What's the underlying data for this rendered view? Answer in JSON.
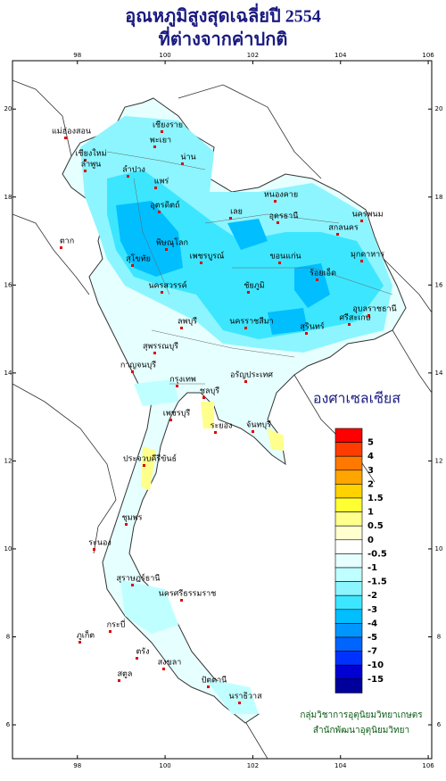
{
  "title": [
    "อุณหภูมิสูงสุดเฉลี่ยปี 2554",
    "ที่ต่างจากค่าปกติ"
  ],
  "map": {
    "xlim": [
      96.52,
      106.08
    ],
    "ylim": [
      5.23,
      21.1
    ],
    "xticks": [
      98,
      100,
      102,
      104,
      106
    ],
    "yticks": [
      6,
      8,
      10,
      12,
      14,
      16,
      18,
      20
    ]
  },
  "legend": {
    "title": "องศาเซลเซียส",
    "levels": [
      5,
      4,
      3,
      2,
      1.5,
      1,
      0.5,
      0,
      -0.5,
      -1,
      -1.5,
      -2,
      -3,
      -4,
      -5,
      -7,
      -10,
      -15
    ],
    "colors": [
      "#ff0000",
      "#ff3c00",
      "#ff7800",
      "#ffa500",
      "#ffd200",
      "#ffff32",
      "#ffff8c",
      "#ffffd0",
      "#ffffff",
      "#e6ffff",
      "#c0ffff",
      "#8cf5ff",
      "#3ce6ff",
      "#00beff",
      "#0096ff",
      "#0064ff",
      "#0032ff",
      "#0000d2",
      "#00009b"
    ]
  },
  "places": [
    "เชียงราย",
    "แม่ฮ่องสอน",
    "เชียงใหม่",
    "พะเยา",
    "ลำพูน",
    "ลำปาง",
    "น่าน",
    "แพร่",
    "อุตรดิตถ์",
    "หนองคาย",
    "เลย",
    "อุดรธานี",
    "นครพนม",
    "สกลนคร",
    "มุกดาหาร",
    "ตาก",
    "พิษณุโลก",
    "สุโขทัย",
    "ขอนแก่น",
    "เพชรบูรณ์",
    "ร้อยเอ็ด",
    "อุบลราชธานี",
    "ชัยภูมิ",
    "นครสวรรค์",
    "ลพบุรี",
    "สุรินทร์",
    "ศรีสะเกษ",
    "นครราชสีมา",
    "กาญจนบุรี",
    "สุพรรณบุรี",
    "กรุงเทพ",
    "อรัญประเทศ",
    "ชลบุรี",
    "ระยอง",
    "จันทบุรี",
    "เพชรบุรี",
    "ประจวบคีรีขันธ์",
    "ชุมพร",
    "ระนอง",
    "สุราษฎร์ธานี",
    "ภูเก็ต",
    "กระบี่",
    "นครศรีธรรมราช",
    "ตรัง",
    "สงขลา",
    "ปัตตานี",
    "นราธิวาส",
    "สตูล"
  ],
  "credits": [
    "กลุ่มวิชาการอุตุนิยมวิทยาเกษตร",
    "สำนักพัฒนาอุตุนิยมวิทยา"
  ]
}
